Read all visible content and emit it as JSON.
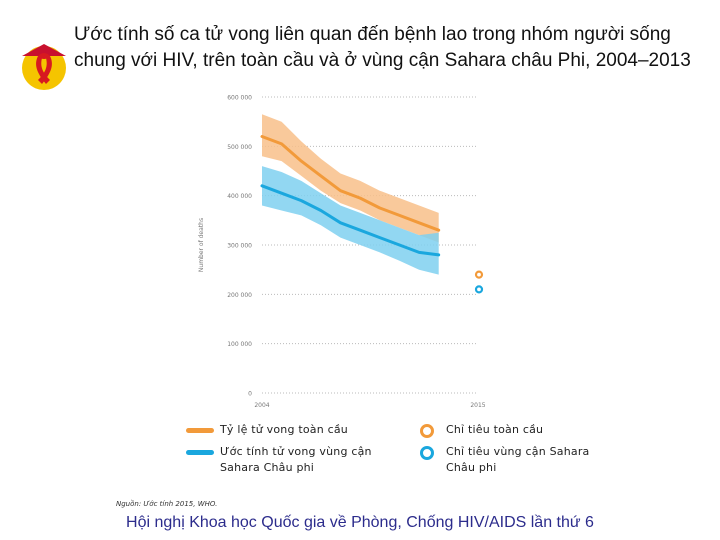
{
  "title": "Ước tính số ca tử vong liên quan đến bệnh lao trong nhóm người sống chung với HIV, trên toàn cầu và ở vùng cận Sahara châu Phi, 2004–2013",
  "source": "Nguồn: Ước tính 2015, WHO.",
  "footer": "Hội nghị Khoa học Quốc gia về Phòng, Chống HIV/AIDS lần thứ 6",
  "logo": {
    "icon": "red-ribbon-logo-icon",
    "colors": {
      "circle": "#f5c400",
      "ribbon": "#d71920",
      "hat": "#c8102e"
    }
  },
  "chart_data": {
    "type": "line",
    "ylabel": "Number of deaths",
    "ylim": [
      0,
      600000
    ],
    "yticks": [
      0,
      100000,
      200000,
      300000,
      400000,
      500000,
      600000
    ],
    "ytick_labels": [
      "0",
      "100 000",
      "200 000",
      "300 000",
      "400 000",
      "500 000",
      "600 000"
    ],
    "xlim": [
      2004,
      2015
    ],
    "xticks": [
      2004,
      2015
    ],
    "xtick_labels": [
      "2004",
      "2015"
    ],
    "x": [
      2004,
      2005,
      2006,
      2007,
      2008,
      2009,
      2010,
      2011,
      2012,
      2013
    ],
    "series": [
      {
        "name": "Tỷ lệ tử vong toàn cầu",
        "color": "#f29a3a",
        "band_color": "#f8c08a",
        "values": [
          520000,
          505000,
          470000,
          440000,
          410000,
          395000,
          375000,
          360000,
          345000,
          330000
        ],
        "lower": [
          480000,
          470000,
          440000,
          410000,
          385000,
          370000,
          350000,
          335000,
          320000,
          305000
        ],
        "upper": [
          565000,
          550000,
          510000,
          475000,
          445000,
          430000,
          410000,
          395000,
          380000,
          365000
        ]
      },
      {
        "name": "Ước tính tử vong vùng cận Sahara Châu phi",
        "color": "#1aa7de",
        "band_color": "#7fd0f0",
        "values": [
          420000,
          405000,
          390000,
          370000,
          345000,
          330000,
          315000,
          300000,
          285000,
          280000
        ],
        "lower": [
          380000,
          370000,
          360000,
          340000,
          315000,
          300000,
          285000,
          268000,
          250000,
          240000
        ],
        "upper": [
          460000,
          448000,
          430000,
          405000,
          380000,
          365000,
          350000,
          335000,
          320000,
          325000
        ]
      }
    ],
    "targets": [
      {
        "name": "Chỉ tiêu toàn cầu",
        "x": 2015,
        "value": 240000,
        "color": "#f29a3a"
      },
      {
        "name": "Chỉ tiêu vùng cận Sahara Châu phi",
        "x": 2015,
        "value": 210000,
        "color": "#1aa7de"
      }
    ],
    "grid": "horizontal-dotted"
  }
}
